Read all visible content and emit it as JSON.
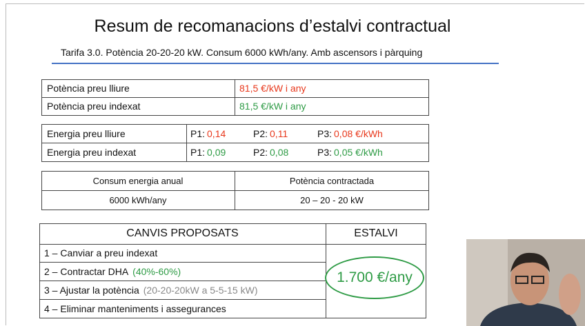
{
  "title": "Resum de recomanacions d’estalvi contractual",
  "subtitle": "Tarifa 3.0.  Potència 20-20-20 kW.  Consum 6000 kWh/any.  Amb ascensors i pàrquing",
  "power_table": {
    "rows": [
      {
        "label": "Potència preu lliure",
        "value": "81,5 €/kW i any"
      },
      {
        "label": "Potència preu indexat",
        "value": "81,5 €/kW i any"
      }
    ]
  },
  "energy_table": {
    "rows": [
      {
        "label": "Energia preu lliure",
        "periods": [
          {
            "name": "P1:",
            "price": "0,14"
          },
          {
            "name": "P2:",
            "price": "0,11"
          },
          {
            "name": "P3:",
            "price": "0,08 €/kWh"
          }
        ]
      },
      {
        "label": "Energia preu indexat",
        "periods": [
          {
            "name": "P1:",
            "price": "0,09"
          },
          {
            "name": "P2:",
            "price": "0,08"
          },
          {
            "name": "P3:",
            "price": "0,05 €/kWh"
          }
        ]
      }
    ]
  },
  "summary_table": {
    "headers": [
      "Consum energia anual",
      "Potència contractada"
    ],
    "values": [
      "6000 kWh/any",
      "20 – 20 - 20 kW"
    ]
  },
  "proposals": {
    "header": "CANVIS PROPOSATS",
    "savings_header": "ESTALVI",
    "rows": [
      {
        "text": "1 – Canviar a preu indexat"
      },
      {
        "text": "2 – Contractar DHA",
        "note": "(40%-60%)"
      },
      {
        "text": "3 – Ajustar la potència",
        "note": "(20-20-20kW a 5-5-15 kW)"
      },
      {
        "text": "4 – Eliminar manteniments i assegurances"
      }
    ],
    "savings": "1.700 €/any"
  }
}
